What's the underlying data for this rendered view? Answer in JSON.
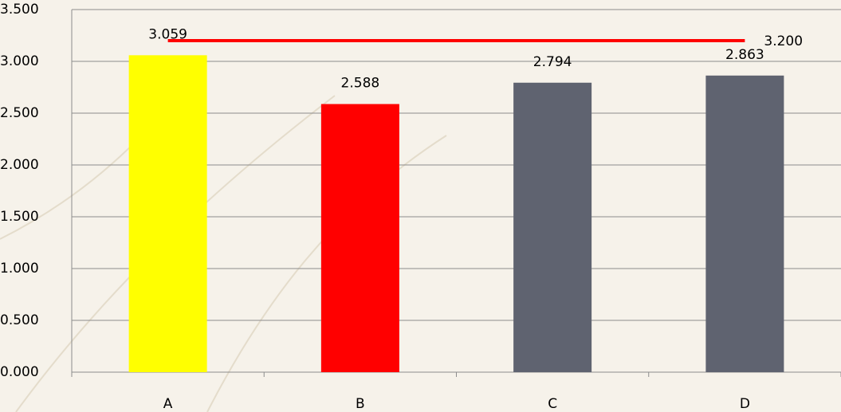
{
  "chart_data": {
    "type": "bar",
    "categories": [
      "A",
      "B",
      "C",
      "D"
    ],
    "values": [
      3.059,
      2.588,
      2.794,
      2.863
    ],
    "colors": [
      "#ffff00",
      "#ff0000",
      "#5f6370",
      "#5f6370"
    ],
    "reference_line": {
      "value": 3.2,
      "label": "3.200",
      "color": "#ff0000"
    },
    "ylim": [
      0,
      3.5
    ],
    "yticks": [
      {
        "value": 0,
        "label": "0.000"
      },
      {
        "value": 0.5,
        "label": "0.500"
      },
      {
        "value": 1,
        "label": "1.000"
      },
      {
        "value": 1.5,
        "label": "1.500"
      },
      {
        "value": 2,
        "label": "2.000"
      },
      {
        "value": 2.5,
        "label": "2.500"
      },
      {
        "value": 3,
        "label": "3.000"
      },
      {
        "value": 3.5,
        "label": "3.500"
      }
    ],
    "grid": true
  }
}
